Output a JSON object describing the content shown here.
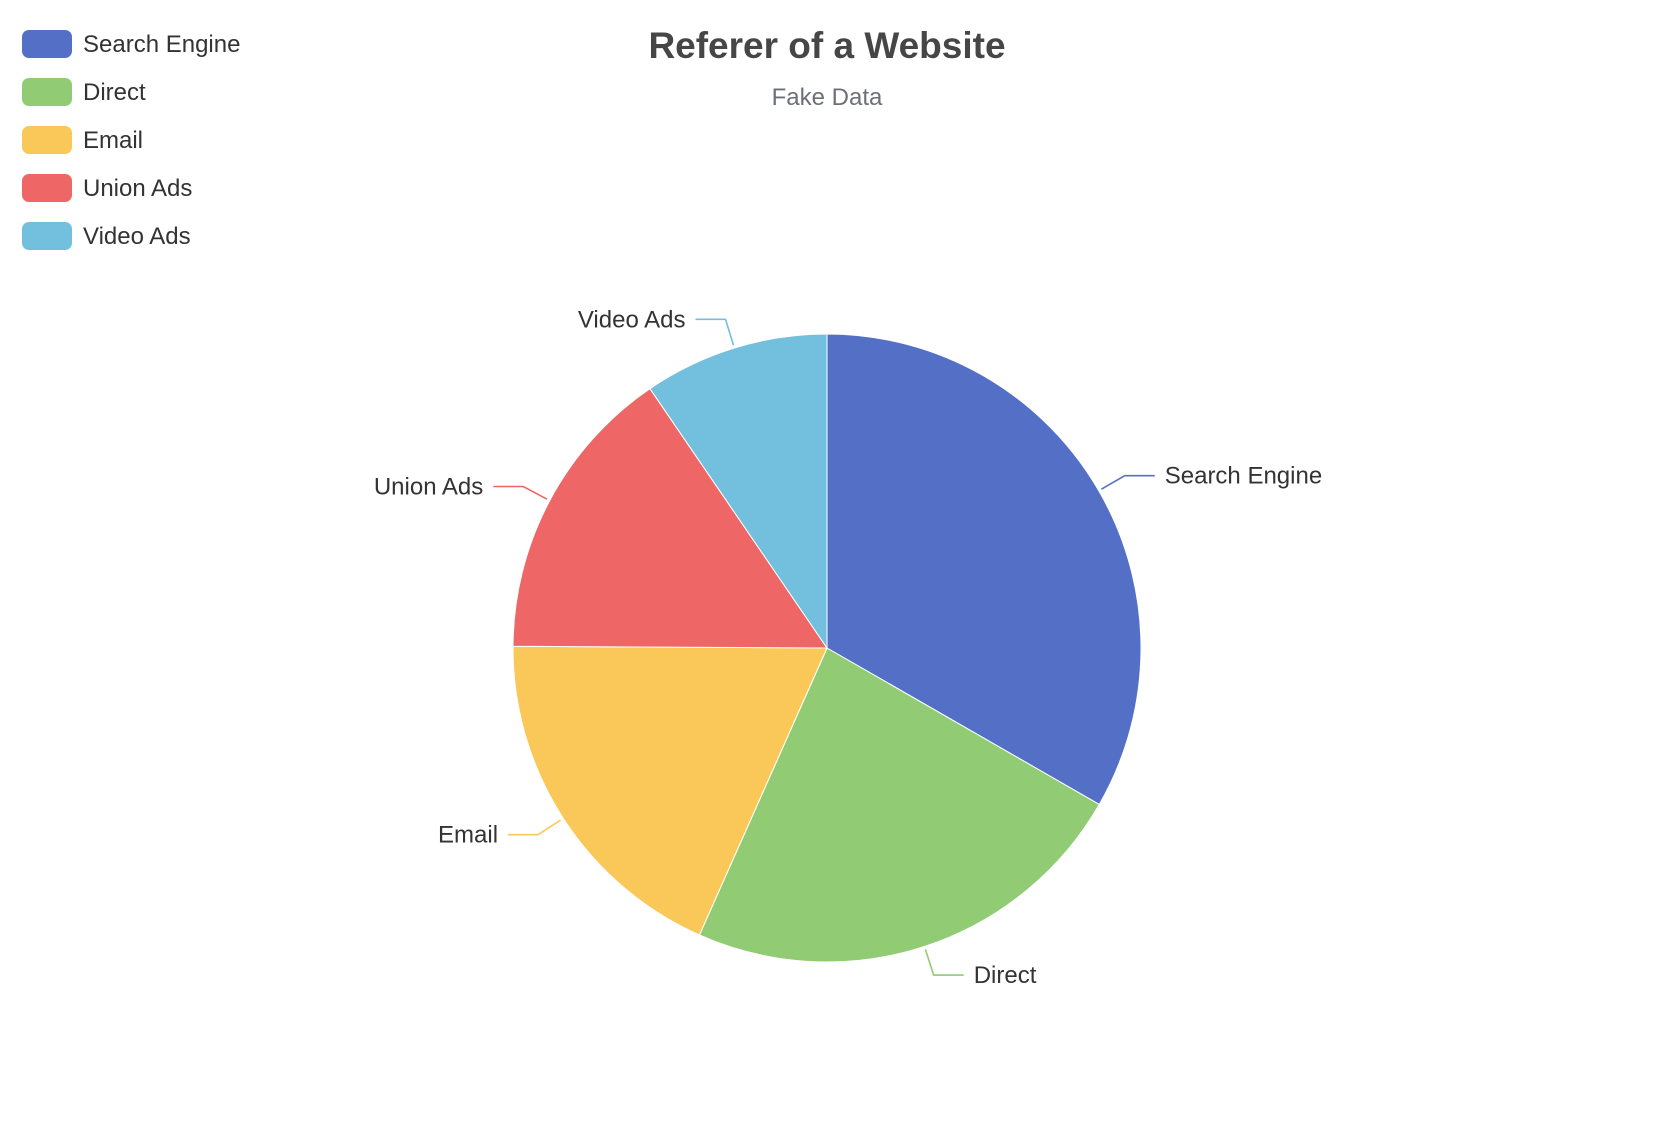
{
  "chart_data": {
    "type": "pie",
    "title": "Referer of a Website",
    "subtitle": "Fake Data",
    "legend_position": "top-left",
    "categories": [
      "Search Engine",
      "Direct",
      "Email",
      "Union Ads",
      "Video Ads"
    ],
    "values": [
      1048,
      735,
      580,
      484,
      300
    ],
    "colors": [
      "#5470c6",
      "#91cc75",
      "#fac858",
      "#ee6666",
      "#73c0de"
    ]
  }
}
